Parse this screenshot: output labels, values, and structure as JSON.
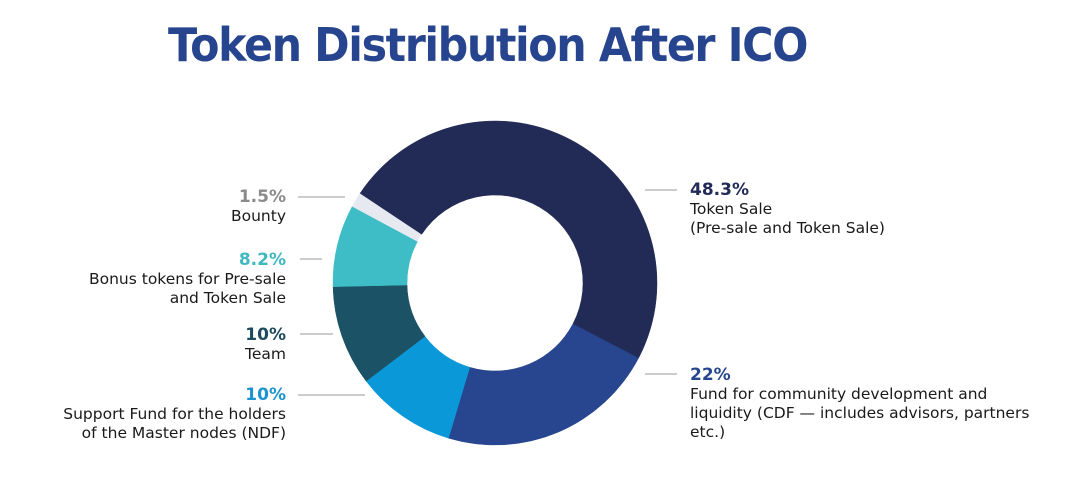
{
  "chart_data": {
    "type": "pie",
    "variant": "donut",
    "title": "Token Distribution After ICO",
    "start_angle_deg": 117.5,
    "direction": "clockwise-from-cdf",
    "slices": [
      {
        "key": "cdf",
        "value": 22,
        "pct_label": "22%",
        "label": "Fund for community development and liquidity (CDF — includes advisors, partners etc.)",
        "label_lines": [
          "Fund for community development and",
          "liquidity (CDF — includes advisors, partners",
          "etc.)"
        ],
        "color": "#28468f",
        "label_color": "#28468f",
        "side": "right"
      },
      {
        "key": "ndf",
        "value": 10,
        "pct_label": "10%",
        "label": "Support Fund for the holders of the Master nodes (NDF)",
        "label_lines": [
          "Support Fund for the holders",
          "of the Master nodes (NDF)"
        ],
        "color": "#0b98d9",
        "label_color": "#1a93d0",
        "side": "left"
      },
      {
        "key": "team",
        "value": 10,
        "pct_label": "10%",
        "label": "Team",
        "label_lines": [
          "Team"
        ],
        "color": "#1b5265",
        "label_color": "#1d4a5e",
        "side": "left"
      },
      {
        "key": "bonus",
        "value": 8.2,
        "pct_label": "8.2%",
        "label": "Bonus tokens for Pre-sale and Token Sale",
        "label_lines": [
          "Bonus tokens for Pre-sale",
          "and Token Sale"
        ],
        "color": "#3ebdc6",
        "label_color": "#3fb8c0",
        "side": "left"
      },
      {
        "key": "bounty",
        "value": 1.5,
        "pct_label": "1.5%",
        "label": "Bounty",
        "label_lines": [
          "Bounty"
        ],
        "color": "#e6e9ef",
        "label_color": "#8a8a8a",
        "side": "left"
      },
      {
        "key": "sale",
        "value": 48.3,
        "pct_label": "48.3%",
        "label": "Token Sale (Pre-sale and Token Sale)",
        "label_lines": [
          "Token Sale",
          "(Pre-sale and Token Sale)"
        ],
        "color": "#222a56",
        "label_color": "#222a56",
        "side": "right"
      }
    ]
  }
}
